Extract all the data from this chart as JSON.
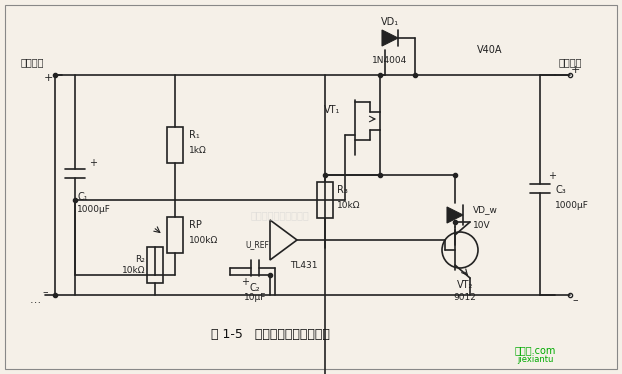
{
  "title": "图 1-5   精密线性稳压电源电路",
  "watermark": "杭州络睿科技有限公司",
  "website_text": "接线图.com\njiexiantu",
  "bg_color": "#f5f0e8",
  "line_color": "#222222",
  "label_input": "输入电压",
  "label_output": "输出电压",
  "components": {
    "C1": {
      "label": "C₁",
      "value": "1000μF"
    },
    "R1": {
      "label": "R₁",
      "value": "1kΩ"
    },
    "RP": {
      "label": "RP",
      "value": "100kΩ"
    },
    "R2": {
      "label": "R₂",
      "value": "10kΩ"
    },
    "R3": {
      "label": "R₃",
      "value": "10kΩ"
    },
    "C2": {
      "label": "C₂",
      "value": "10μF"
    },
    "VD1": {
      "label": "VD₁",
      "value": "1N4004"
    },
    "VDw": {
      "label": "VD_w",
      "value": "10V"
    },
    "VT1": {
      "label": "VT₁",
      "value": ""
    },
    "VT2": {
      "label": "VT₂",
      "value": "9012"
    },
    "TL431": {
      "label": "TL431",
      "value": ""
    },
    "C3": {
      "label": "C₃",
      "value": "1000μF"
    },
    "V40A": {
      "label": "V40A",
      "value": ""
    }
  }
}
